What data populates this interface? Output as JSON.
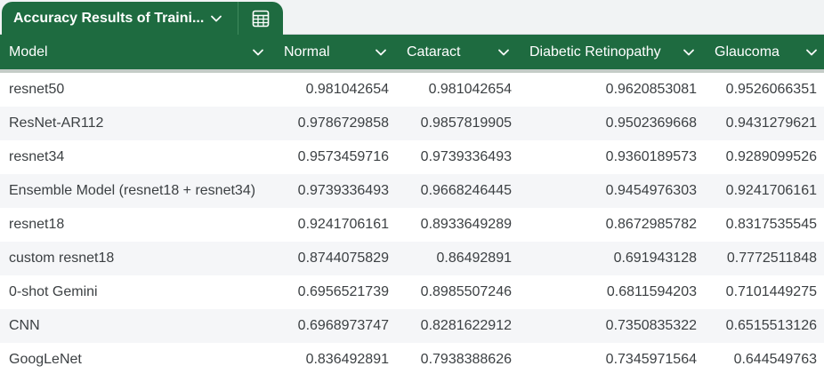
{
  "tab": {
    "title": "Accuracy Results of Traini..."
  },
  "icons": {
    "tab_menu": "chevron-down-icon",
    "table_view": "table-icon",
    "column_menu": "chevron-down-icon"
  },
  "colors": {
    "accent": "#1e6b40",
    "header_text": "#ffffff",
    "row_alt": "#f5f6f8"
  },
  "columns": [
    "Model",
    "Normal",
    "Cataract",
    "Diabetic Retinopathy",
    "Glaucoma"
  ],
  "rows": [
    [
      "resnet50",
      "0.981042654",
      "0.981042654",
      "0.9620853081",
      "0.9526066351"
    ],
    [
      "ResNet-AR112",
      "0.9786729858",
      "0.9857819905",
      "0.9502369668",
      "0.9431279621"
    ],
    [
      "resnet34",
      "0.9573459716",
      "0.9739336493",
      "0.9360189573",
      "0.9289099526"
    ],
    [
      "Ensemble Model (resnet18 + resnet34)",
      "0.9739336493",
      "0.9668246445",
      "0.9454976303",
      "0.9241706161"
    ],
    [
      "resnet18",
      "0.9241706161",
      "0.8933649289",
      "0.8672985782",
      "0.8317535545"
    ],
    [
      "custom resnet18",
      "0.8744075829",
      "0.86492891",
      "0.691943128",
      "0.7772511848"
    ],
    [
      "0-shot Gemini",
      "0.6956521739",
      "0.8985507246",
      "0.6811594203",
      "0.7101449275"
    ],
    [
      "CNN",
      "0.6968973747",
      "0.8281622912",
      "0.7350835322",
      "0.6515513126"
    ],
    [
      "GoogLeNet",
      "0.836492891",
      "0.7938388626",
      "0.7345971564",
      "0.644549763"
    ]
  ]
}
